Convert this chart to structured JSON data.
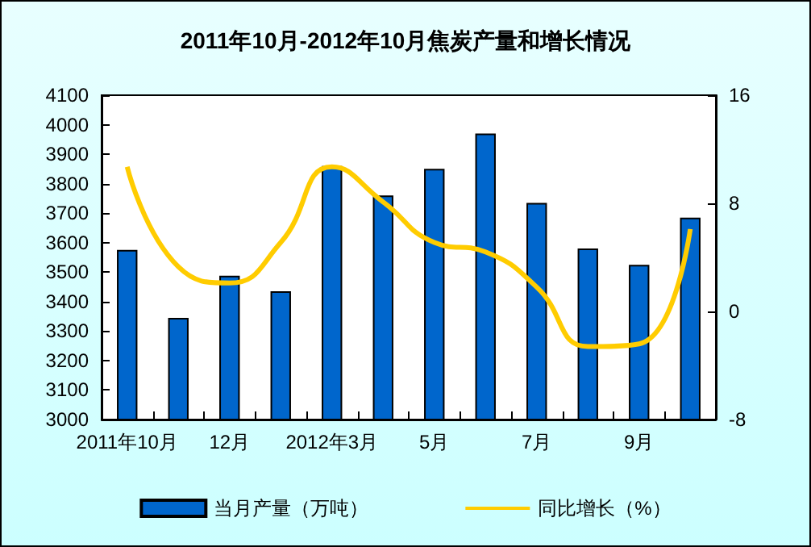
{
  "chart_data": {
    "type": "bar",
    "title": "2011年10月-2012年10月焦炭产量和增长情况",
    "categories": [
      "2011年10月",
      null,
      "12月",
      null,
      "2012年3月",
      null,
      "5月",
      null,
      "7月",
      null,
      "9月",
      null
    ],
    "series": [
      {
        "name": "当月产量（万吨）",
        "color": "#0066cc",
        "values": [
          3575,
          3345,
          3488,
          3435,
          3860,
          3760,
          3850,
          3970,
          3735,
          3580,
          3525,
          3685
        ]
      },
      {
        "name": "同比增长（%）",
        "type": "line",
        "axis": "y2",
        "color": "#ffcc00",
        "values": [
          10.7,
          3.3,
          2.1,
          5.1,
          10.7,
          8.1,
          5.1,
          4.4,
          1.8,
          -2.6,
          -2.4,
          6.1
        ]
      }
    ],
    "ylim": [
      3000,
      4100
    ],
    "yticks": [
      3000,
      3100,
      3200,
      3300,
      3400,
      3500,
      3600,
      3700,
      3800,
      3900,
      4000,
      4100
    ],
    "y2lim": [
      -8,
      16
    ],
    "y2ticks": [
      -8,
      0,
      8,
      16
    ],
    "grid": false,
    "legend": "bottom",
    "marker": "none"
  }
}
